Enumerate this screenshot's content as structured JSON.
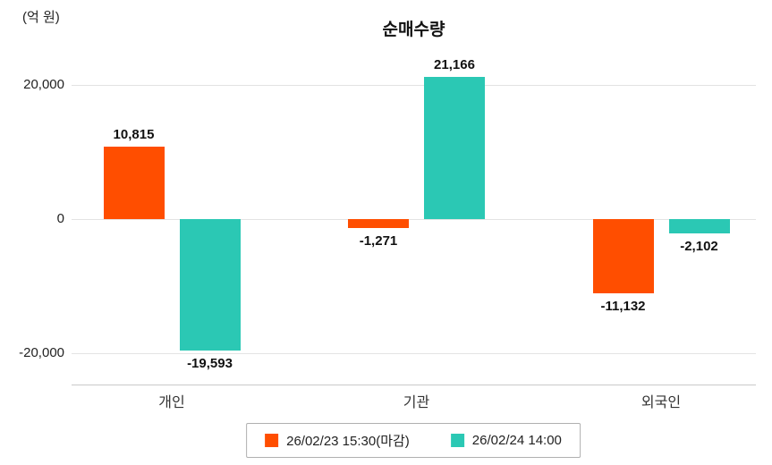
{
  "chart": {
    "title": "순매수량",
    "unit_label": "(억 원)"
  },
  "chart_data": {
    "type": "bar",
    "title": "순매수량",
    "ylabel": "(억 원)",
    "categories": [
      "개인",
      "기관",
      "외국인"
    ],
    "series": [
      {
        "name": "26/02/23 15:30(마감)",
        "color": "#FF4E00",
        "values": [
          10815,
          -1271,
          -11132
        ],
        "value_labels": [
          "10,815",
          "-1,271",
          "-11,132"
        ]
      },
      {
        "name": "26/02/24 14:00",
        "color": "#2BC8B4",
        "values": [
          -19593,
          21166,
          -2102
        ],
        "value_labels": [
          "-19,593",
          "21,166",
          "-2,102"
        ]
      }
    ],
    "yticks": [
      {
        "value": 20000,
        "label": "20,000"
      },
      {
        "value": 0,
        "label": "0"
      },
      {
        "value": -20000,
        "label": "-20,000"
      }
    ],
    "ylim": [
      -27000,
      23000
    ],
    "grid": true,
    "legend_position": "bottom"
  }
}
